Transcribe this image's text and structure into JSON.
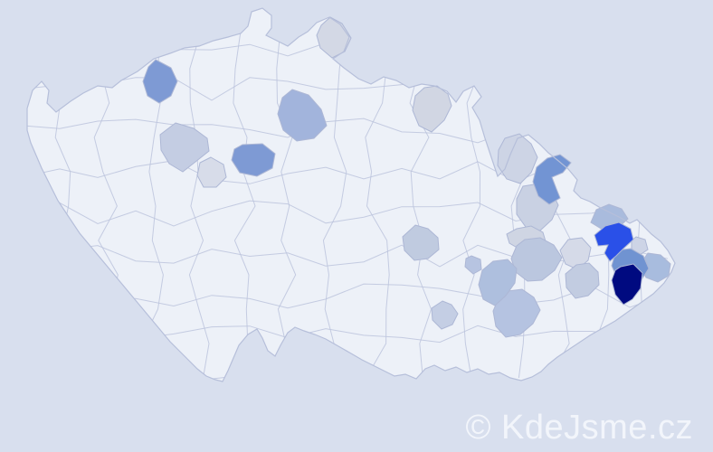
{
  "watermark": {
    "text": "© KdeJsme.cz"
  },
  "colors": {
    "background": "#d8dfee",
    "land": "#edf1f8",
    "district_border": "#b6bfda",
    "scale_darkest": "#000a80",
    "scale_high": "#2a50e8",
    "scale_medium": "#7e9ad4",
    "scale_low": "#a9bbdd",
    "scale_minimal": "#d7dce9"
  },
  "districts": [
    {
      "id": "region-01",
      "location": "west-central",
      "color": "#c4cde3"
    },
    {
      "id": "region-02",
      "location": "west-central",
      "color": "#d7dce9"
    },
    {
      "id": "region-03",
      "location": "north",
      "color": "#d3d8e5"
    },
    {
      "id": "region-04",
      "location": "north-east-bohemia",
      "color": "#d1d6e3"
    },
    {
      "id": "region-05",
      "location": "northeast",
      "color": "#cdd4e5"
    },
    {
      "id": "region-06",
      "location": "northeast",
      "color": "#c9d1e3"
    },
    {
      "id": "region-07",
      "location": "east-central",
      "color": "#cfd5e3"
    },
    {
      "id": "region-08",
      "location": "east",
      "color": "#d5dae8"
    },
    {
      "id": "region-09",
      "location": "far-east",
      "color": "#cdd4e6"
    },
    {
      "id": "region-10",
      "location": "east-central",
      "color": "#c0cbe0"
    },
    {
      "id": "region-11",
      "location": "east",
      "color": "#bbc7df"
    },
    {
      "id": "region-12",
      "location": "southeast",
      "color": "#c4cee4"
    },
    {
      "id": "region-13",
      "location": "east",
      "color": "#c2cce1"
    },
    {
      "id": "region-14",
      "location": "east",
      "color": "#b7c4e1"
    },
    {
      "id": "region-15",
      "location": "southeast",
      "color": "#b5c3e1"
    },
    {
      "id": "region-16",
      "location": "east",
      "color": "#aebfde"
    },
    {
      "id": "region-17",
      "location": "north-central",
      "color": "#a2b4dc"
    },
    {
      "id": "region-18",
      "location": "far-east",
      "color": "#a8bcde"
    },
    {
      "id": "region-19",
      "location": "northeast",
      "color": "#a9bbdd"
    },
    {
      "id": "region-20",
      "location": "northwest",
      "color": "#7e9ad4"
    },
    {
      "id": "region-21",
      "location": "central",
      "color": "#7e9ad4"
    },
    {
      "id": "region-22",
      "location": "northeast",
      "color": "#7294d3"
    },
    {
      "id": "region-23",
      "location": "far-east",
      "color": "#7093d1"
    },
    {
      "id": "region-24",
      "location": "far-east-highlight",
      "color": "#2a50e8"
    },
    {
      "id": "region-25",
      "location": "far-east-darkest",
      "color": "#000a80"
    }
  ]
}
